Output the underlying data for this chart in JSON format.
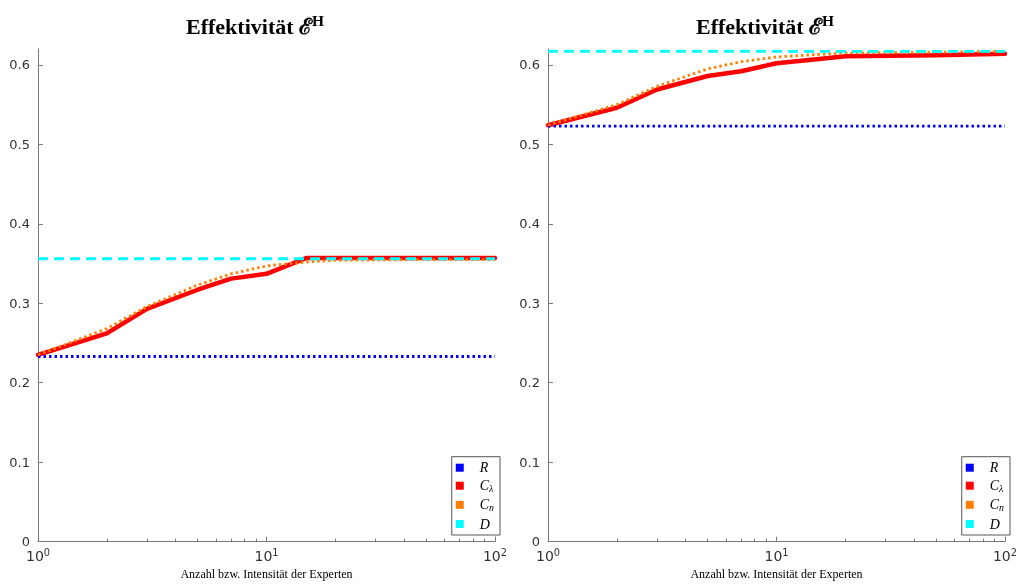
{
  "chart_data": [
    {
      "type": "line",
      "title": "Effektivität ℰ$^{H}$",
      "xlabel": "Anzahl bzw. Intensität der Experten",
      "log": "x",
      "xlim": [
        1,
        100
      ],
      "xticks": [
        {
          "value": 1,
          "label": "10$^{0}$"
        },
        {
          "value": 10,
          "label": "10$^{1}$"
        },
        {
          "value": 100,
          "label": "10$^{2}$"
        }
      ],
      "ylim": [
        0,
        0.62
      ],
      "yticks": [
        0,
        0.1,
        0.2,
        0.3,
        0.4,
        0.5,
        0.6
      ],
      "grid": false,
      "legend": "bottom right",
      "marker": "none",
      "series": [
        {
          "name": "R",
          "color": "#0000ff",
          "line_style": "dotted",
          "x": [
            1,
            100
          ],
          "values": [
            0.233,
            0.233
          ]
        },
        {
          "name": "C$_{λ}$",
          "color": "#ff0000",
          "line_style": "solid",
          "x": [
            1,
            2,
            3,
            5,
            7,
            10,
            15,
            20,
            50,
            100
          ],
          "values": [
            0.235,
            0.262,
            0.293,
            0.317,
            0.331,
            0.337,
            0.357,
            0.357,
            0.357,
            0.357
          ]
        },
        {
          "name": "C$_{n}$",
          "color": "#ff8000",
          "line_style": "dotted",
          "x": [
            1,
            2,
            3,
            5,
            7,
            10,
            15,
            20,
            50,
            100
          ],
          "values": [
            0.235,
            0.268,
            0.296,
            0.323,
            0.337,
            0.347,
            0.352,
            0.354,
            0.355,
            0.355
          ]
        },
        {
          "name": "D",
          "color": "#00ffff",
          "line_style": "dashed",
          "x": [
            1,
            100
          ],
          "values": [
            0.356,
            0.356
          ]
        }
      ]
    },
    {
      "type": "line",
      "title": "Effektivität ℰ$^{H}$",
      "xlabel": "Anzahl bzw. Intensität der Experten",
      "log": "x",
      "xlim": [
        1,
        100
      ],
      "xticks": [
        {
          "value": 1,
          "label": "10$^{0}$"
        },
        {
          "value": 10,
          "label": "10$^{1}$"
        },
        {
          "value": 100,
          "label": "10$^{2}$"
        }
      ],
      "ylim": [
        0,
        0.62
      ],
      "yticks": [
        0,
        0.1,
        0.2,
        0.3,
        0.4,
        0.5,
        0.6
      ],
      "grid": false,
      "legend": "bottom right",
      "marker": "none",
      "series": [
        {
          "name": "R",
          "color": "#0000ff",
          "line_style": "dotted",
          "x": [
            1,
            100
          ],
          "values": [
            0.523,
            0.523
          ]
        },
        {
          "name": "C$_{λ}$",
          "color": "#ff0000",
          "line_style": "solid",
          "x": [
            1,
            2,
            3,
            5,
            7,
            10,
            15,
            20,
            50,
            100
          ],
          "values": [
            0.524,
            0.546,
            0.569,
            0.586,
            0.592,
            0.602,
            0.607,
            0.611,
            0.612,
            0.614
          ]
        },
        {
          "name": "C$_{n}$",
          "color": "#ff8000",
          "line_style": "dotted",
          "x": [
            1,
            2,
            3,
            5,
            7,
            10,
            15,
            20,
            50,
            100
          ],
          "values": [
            0.524,
            0.55,
            0.573,
            0.595,
            0.604,
            0.61,
            0.613,
            0.615,
            0.616,
            0.617
          ]
        },
        {
          "name": "D",
          "color": "#00ffff",
          "line_style": "dashed",
          "x": [
            1,
            100
          ],
          "values": [
            0.617,
            0.617
          ]
        }
      ]
    }
  ]
}
